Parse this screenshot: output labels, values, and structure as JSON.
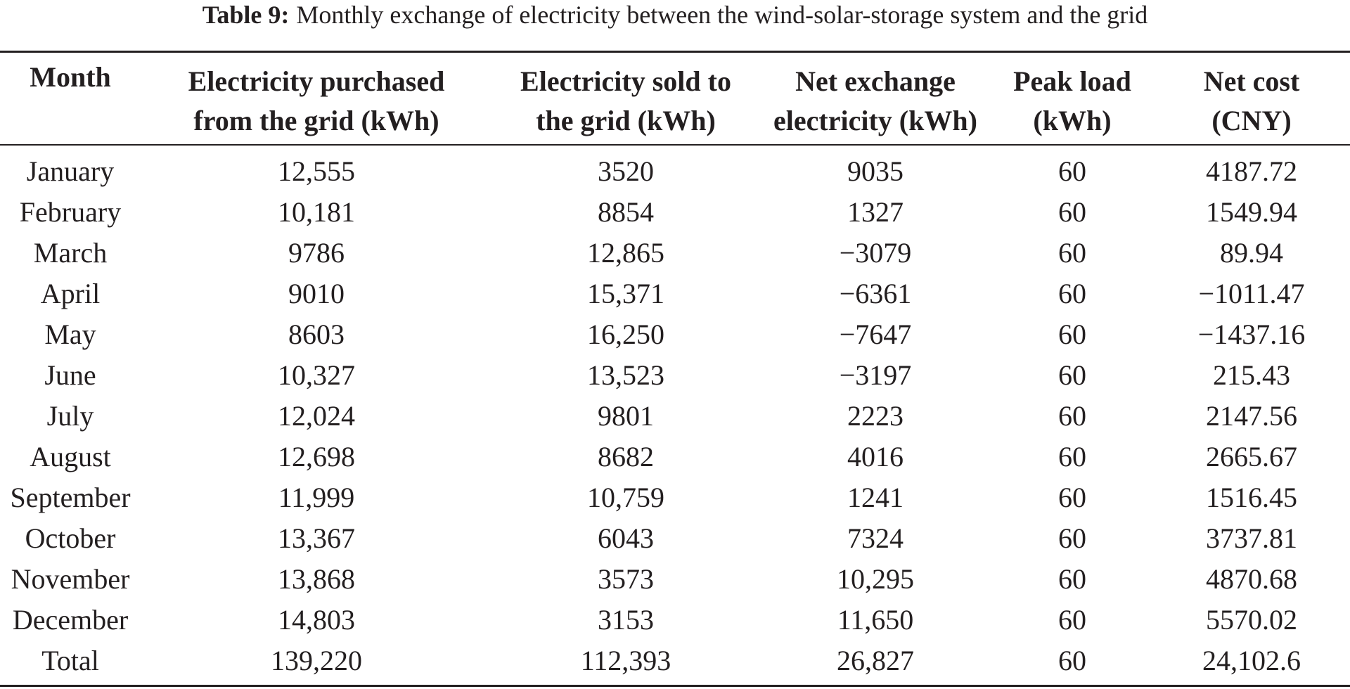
{
  "caption": {
    "label": "Table 9:",
    "text": "Monthly exchange of electricity between the wind-solar-storage system and the grid"
  },
  "table": {
    "headers": [
      {
        "line1": "Month",
        "line2": ""
      },
      {
        "line1": "Electricity purchased",
        "line2": "from the grid (kWh)"
      },
      {
        "line1": "Electricity sold to",
        "line2": "the grid (kWh)"
      },
      {
        "line1": "Net exchange",
        "line2": "electricity (kWh)"
      },
      {
        "line1": "Peak load",
        "line2": "(kWh)"
      },
      {
        "line1": "Net cost",
        "line2": "(CNY)"
      }
    ],
    "rows": [
      [
        "January",
        "12,555",
        "3520",
        "9035",
        "60",
        "4187.72"
      ],
      [
        "February",
        "10,181",
        "8854",
        "1327",
        "60",
        "1549.94"
      ],
      [
        "March",
        "9786",
        "12,865",
        "−3079",
        "60",
        "89.94"
      ],
      [
        "April",
        "9010",
        "15,371",
        "−6361",
        "60",
        "−1011.47"
      ],
      [
        "May",
        "8603",
        "16,250",
        "−7647",
        "60",
        "−1437.16"
      ],
      [
        "June",
        "10,327",
        "13,523",
        "−3197",
        "60",
        "215.43"
      ],
      [
        "July",
        "12,024",
        "9801",
        "2223",
        "60",
        "2147.56"
      ],
      [
        "August",
        "12,698",
        "8682",
        "4016",
        "60",
        "2665.67"
      ],
      [
        "September",
        "11,999",
        "10,759",
        "1241",
        "60",
        "1516.45"
      ],
      [
        "October",
        "13,367",
        "6043",
        "7324",
        "60",
        "3737.81"
      ],
      [
        "November",
        "13,868",
        "3573",
        "10,295",
        "60",
        "4870.68"
      ],
      [
        "December",
        "14,803",
        "3153",
        "11,650",
        "60",
        "5570.02"
      ],
      [
        "Total",
        "139,220",
        "112,393",
        "26,827",
        "60",
        "24,102.6"
      ]
    ]
  }
}
